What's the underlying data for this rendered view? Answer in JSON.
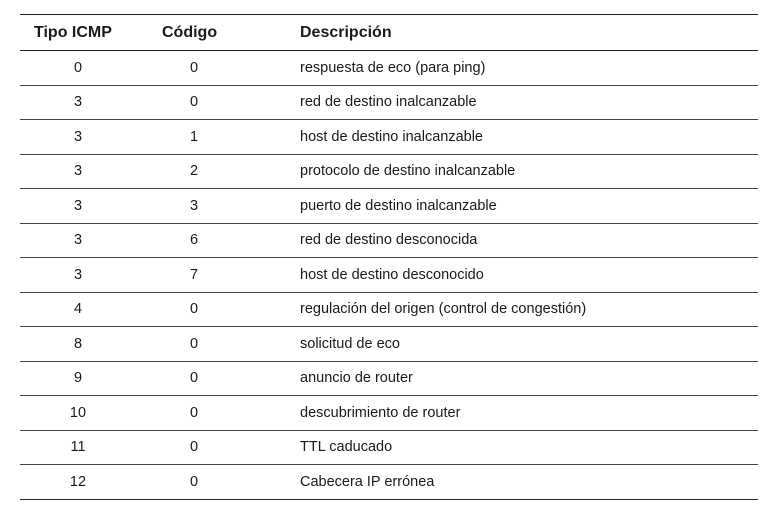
{
  "table": {
    "headers": {
      "type": "Tipo ICMP",
      "code": "Código",
      "description": "Descripción"
    },
    "rows": [
      {
        "type": "0",
        "code": "0",
        "description": "respuesta de eco (para ping)"
      },
      {
        "type": "3",
        "code": "0",
        "description": "red de destino inalcanzable"
      },
      {
        "type": "3",
        "code": "1",
        "description": "host de destino inalcanzable"
      },
      {
        "type": "3",
        "code": "2",
        "description": "protocolo de destino inalcanzable"
      },
      {
        "type": "3",
        "code": "3",
        "description": "puerto de destino inalcanzable"
      },
      {
        "type": "3",
        "code": "6",
        "description": "red de destino desconocida"
      },
      {
        "type": "3",
        "code": "7",
        "description": "host de destino desconocido"
      },
      {
        "type": "4",
        "code": "0",
        "description": "regulación del origen (control de congestión)"
      },
      {
        "type": "8",
        "code": "0",
        "description": "solicitud de eco"
      },
      {
        "type": "9",
        "code": "0",
        "description": "anuncio de router"
      },
      {
        "type": "10",
        "code": "0",
        "description": "descubrimiento de router"
      },
      {
        "type": "11",
        "code": "0",
        "description": "TTL caducado"
      },
      {
        "type": "12",
        "code": "0",
        "description": "Cabecera IP errónea"
      }
    ]
  }
}
